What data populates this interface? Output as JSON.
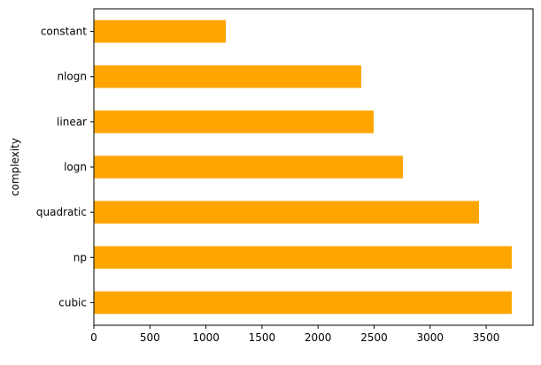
{
  "chart_data": {
    "type": "bar",
    "orientation": "horizontal",
    "categories": [
      "cubic",
      "np",
      "quadratic",
      "logn",
      "linear",
      "nlogn",
      "constant"
    ],
    "values": [
      3728,
      3728,
      3436,
      2757,
      2496,
      2385,
      1177
    ],
    "title": "",
    "xlabel": "",
    "ylabel": "complexity",
    "xlim": [
      0,
      3918
    ],
    "xticks": [
      0,
      500,
      1000,
      1500,
      2000,
      2500,
      3000,
      3500
    ],
    "grid": false,
    "color": "#ffa500"
  }
}
